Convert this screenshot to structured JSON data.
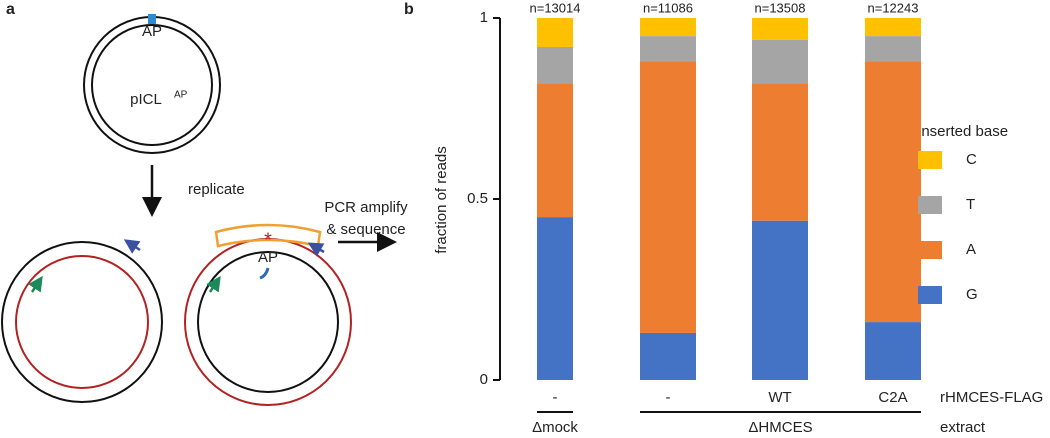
{
  "panel_a": {
    "panel_label": "a",
    "top_site": "AP",
    "plasmid": "pICL",
    "plasmid_sup": "AP",
    "step": "replicate",
    "method_line1": "PCR amplify",
    "method_line2": "& sequence",
    "bottom_site": "AP"
  },
  "chart_data": {
    "type": "stacked_bar",
    "panel_label": "b",
    "y_label": "fraction of reads",
    "categories": [
      "-",
      "-",
      "WT",
      "C2A"
    ],
    "category_row_label": "rHMCES-FLAG",
    "groups": [
      "Δmock",
      "ΔHMCES"
    ],
    "group_row_label": "extract",
    "annotations": [
      "n=13014",
      "n=11086",
      "n=13508",
      "n=12243"
    ],
    "legend_title": "inserted base",
    "series": [
      {
        "name": "C",
        "color": "#ffc000",
        "values": [
          0.08,
          0.05,
          0.06,
          0.05
        ]
      },
      {
        "name": "T",
        "color": "#a5a5a5",
        "values": [
          0.1,
          0.07,
          0.12,
          0.07
        ]
      },
      {
        "name": "A",
        "color": "#ed7d31",
        "values": [
          0.37,
          0.75,
          0.38,
          0.72
        ]
      },
      {
        "name": "G",
        "color": "#4472c4",
        "values": [
          0.45,
          0.13,
          0.44,
          0.16
        ]
      }
    ],
    "ylim": [
      0,
      1
    ],
    "yticks": [
      0,
      0.5,
      1
    ]
  }
}
